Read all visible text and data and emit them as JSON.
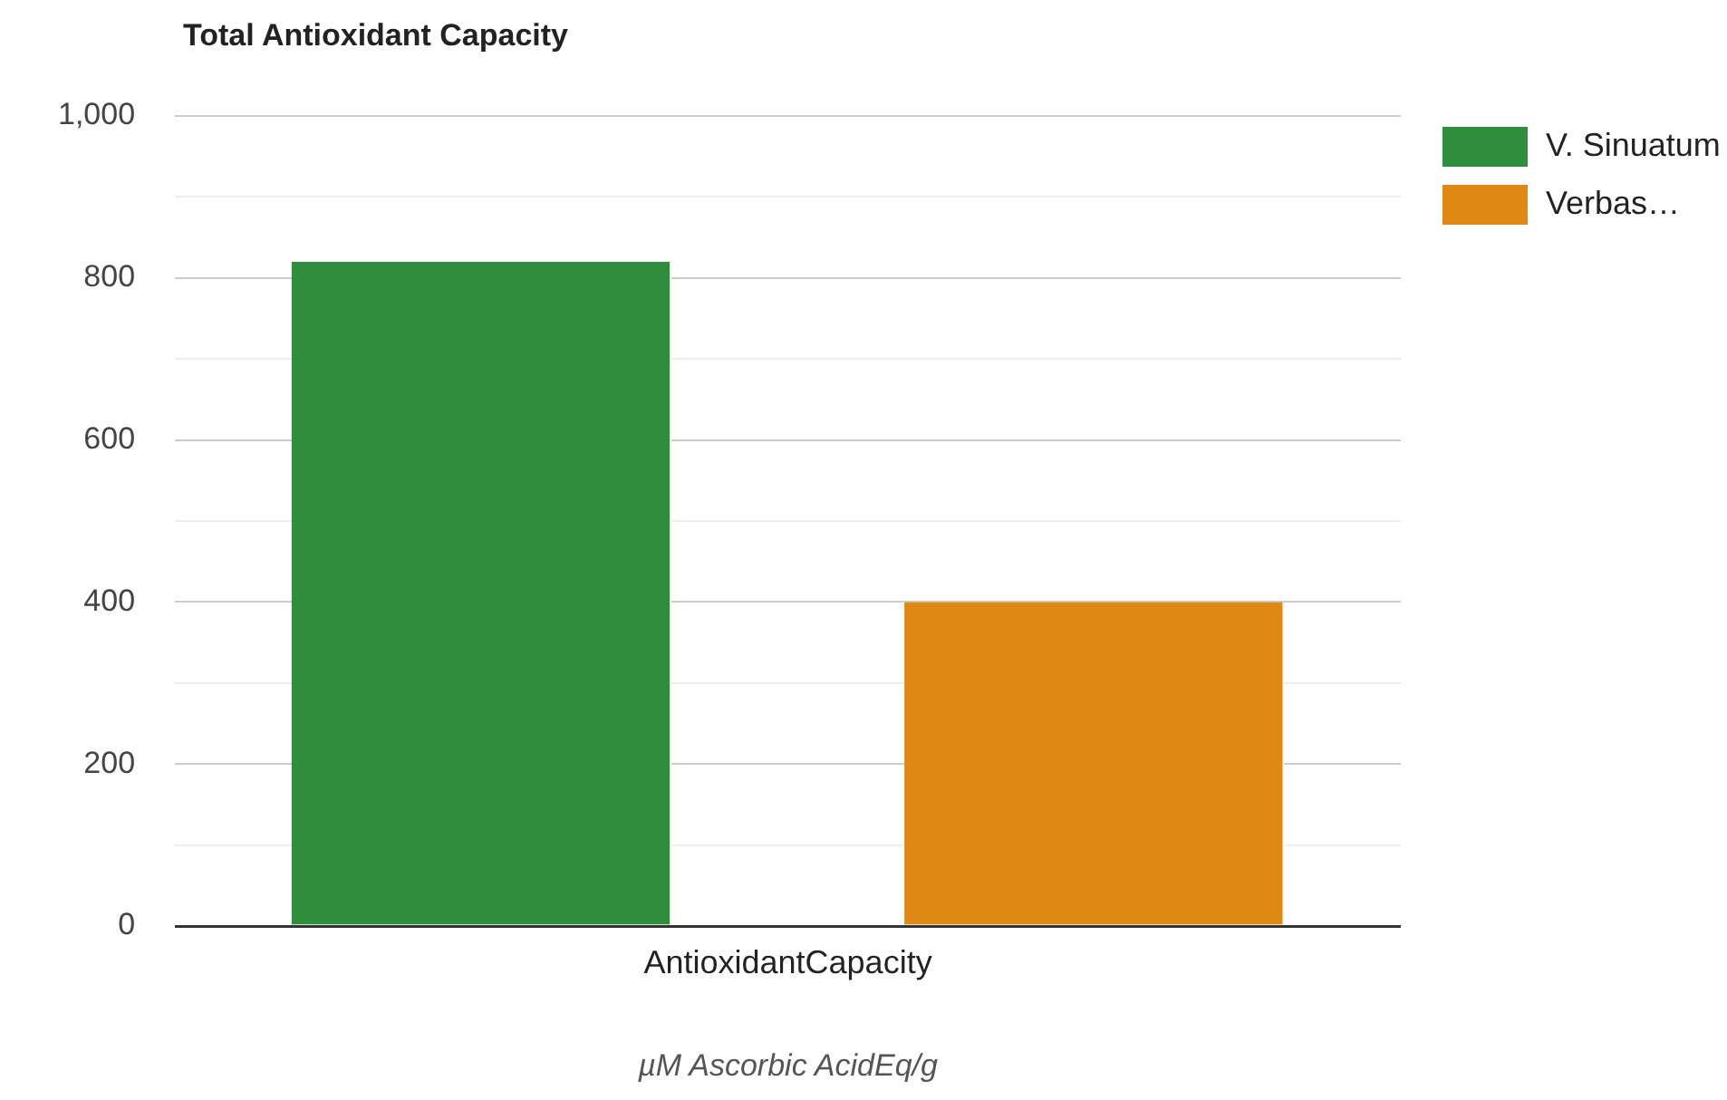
{
  "chart_data": {
    "type": "bar",
    "title": "Total Antioxidant Capacity",
    "xlabel": "µM Ascorbic AcidEq/g",
    "categories": [
      "AntioxidantCapacity"
    ],
    "series": [
      {
        "name": "V. Sinuatum",
        "color": "#2e8e3c",
        "values": [
          820
        ]
      },
      {
        "name": "Verbas…",
        "color": "#df8914",
        "values": [
          400
        ]
      }
    ],
    "ylim": [
      0,
      1000
    ],
    "yticks": [
      0,
      {
        "value": 100,
        "label": null
      },
      200,
      {
        "value": 300,
        "label": null
      },
      400,
      {
        "value": 500,
        "label": null
      },
      600,
      {
        "value": 700,
        "label": null
      },
      800,
      {
        "value": 900,
        "label": null
      },
      {
        "value": 1000,
        "label": "1,000"
      }
    ],
    "grid": "y",
    "legend": "top right"
  }
}
